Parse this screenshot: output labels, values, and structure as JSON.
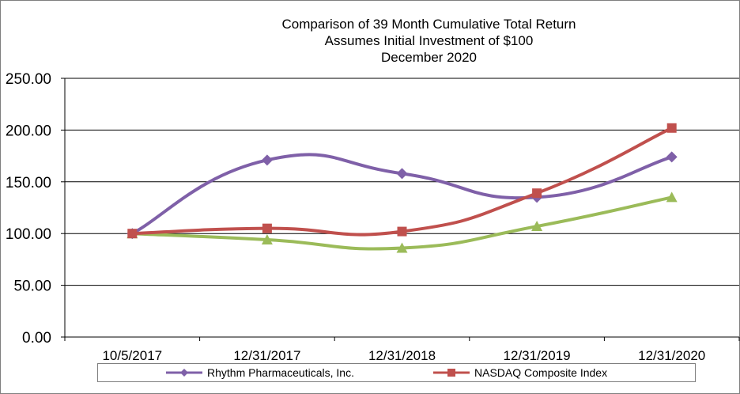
{
  "chart_data": {
    "type": "line",
    "title": "Comparison of 39 Month Cumulative Total Return",
    "subtitle_lines": [
      "Assumes Initial Investment of $100",
      "December 2020"
    ],
    "categories": [
      "10/5/2017",
      "12/31/2017",
      "12/31/2018",
      "12/31/2019",
      "12/31/2020"
    ],
    "ylim": [
      0,
      250
    ],
    "yticks": [
      "0.00",
      "50.00",
      "100.00",
      "150.00",
      "200.00",
      "250.00"
    ],
    "ytick_values": [
      0,
      50,
      100,
      150,
      200,
      250
    ],
    "grid": true,
    "legend_position": "bottom",
    "series": [
      {
        "name": "Rhythm Pharmaceuticals, Inc.",
        "values": [
          100,
          171,
          158,
          135,
          174
        ],
        "color": "#7f60a8",
        "marker": "diamond",
        "legend": true
      },
      {
        "name": "NASDAQ Composite Index",
        "values": [
          100,
          105,
          102,
          139,
          202
        ],
        "color": "#c0504d",
        "marker": "square",
        "legend": true
      },
      {
        "name": "",
        "values": [
          100,
          94,
          86,
          107,
          135
        ],
        "color": "#9bbb59",
        "marker": "triangle",
        "legend": false
      }
    ]
  }
}
